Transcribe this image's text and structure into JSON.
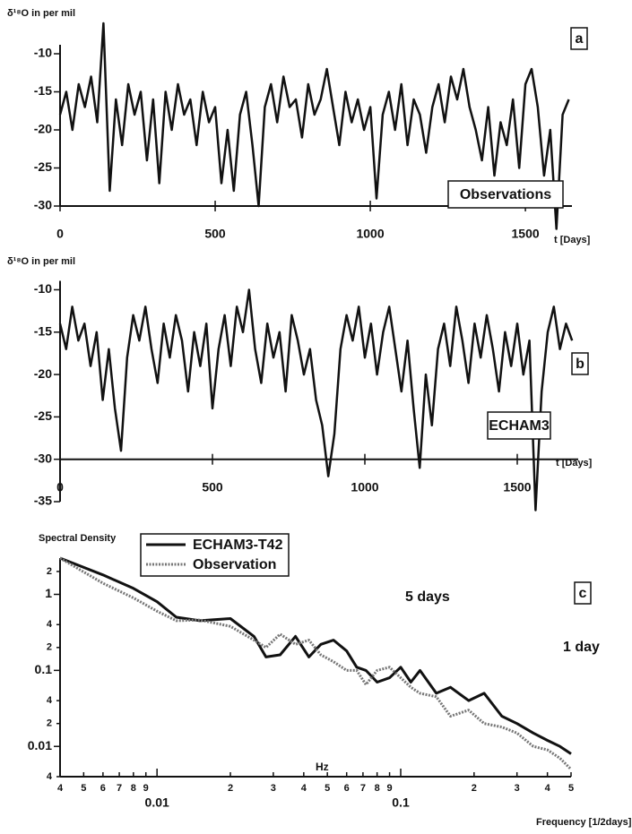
{
  "chart_data": [
    {
      "type": "line",
      "panel_label": "a",
      "ylabel": "δ¹⁸O in per mil",
      "xlabel": "t [Days]",
      "xlim": [
        0,
        1650
      ],
      "xticks": [
        0,
        500,
        1000,
        1500
      ],
      "ylim": [
        -30,
        -8
      ],
      "yticks": [
        -10,
        -15,
        -20,
        -25,
        -30
      ],
      "series": [
        {
          "name": "Observations",
          "color": "#111111",
          "x": [
            0,
            20,
            40,
            60,
            80,
            100,
            120,
            140,
            160,
            180,
            200,
            220,
            240,
            260,
            280,
            300,
            320,
            340,
            360,
            380,
            400,
            420,
            440,
            460,
            480,
            500,
            520,
            540,
            560,
            580,
            600,
            620,
            640,
            660,
            680,
            700,
            720,
            740,
            760,
            780,
            800,
            820,
            840,
            860,
            880,
            900,
            920,
            940,
            960,
            980,
            1000,
            1020,
            1040,
            1060,
            1080,
            1100,
            1120,
            1140,
            1160,
            1180,
            1200,
            1220,
            1240,
            1260,
            1280,
            1300,
            1320,
            1340,
            1360,
            1380,
            1400,
            1420,
            1440,
            1460,
            1480,
            1500,
            1520,
            1540,
            1560,
            1580,
            1600,
            1620,
            1640
          ],
          "values": [
            -18,
            -15,
            -20,
            -14,
            -17,
            -13,
            -19,
            -6,
            -28,
            -16,
            -22,
            -14,
            -18,
            -15,
            -24,
            -16,
            -27,
            -15,
            -20,
            -14,
            -18,
            -16,
            -22,
            -15,
            -19,
            -17,
            -27,
            -20,
            -28,
            -18,
            -15,
            -22,
            -30,
            -17,
            -14,
            -19,
            -13,
            -17,
            -16,
            -21,
            -14,
            -18,
            -16,
            -12,
            -17,
            -22,
            -15,
            -19,
            -16,
            -20,
            -17,
            -29,
            -18,
            -15,
            -20,
            -14,
            -22,
            -16,
            -18,
            -23,
            -17,
            -14,
            -19,
            -13,
            -16,
            -12,
            -17,
            -20,
            -24,
            -17,
            -26,
            -19,
            -22,
            -16,
            -25,
            -14,
            -12,
            -17,
            -26,
            -20,
            -33,
            -18,
            -16
          ]
        }
      ]
    },
    {
      "type": "line",
      "panel_label": "b",
      "ylabel": "δ¹⁸O in per mil",
      "xlabel": "t [Days]",
      "xlim": [
        0,
        1700
      ],
      "xticks": [
        0,
        500,
        1000,
        1500
      ],
      "ylim": [
        -35,
        -9
      ],
      "yticks": [
        -10,
        -15,
        -20,
        -25,
        -30,
        -35
      ],
      "series": [
        {
          "name": "ECHAM3",
          "color": "#111111",
          "x": [
            0,
            20,
            40,
            60,
            80,
            100,
            120,
            140,
            160,
            180,
            200,
            220,
            240,
            260,
            280,
            300,
            320,
            340,
            360,
            380,
            400,
            420,
            440,
            460,
            480,
            500,
            520,
            540,
            560,
            580,
            600,
            620,
            640,
            660,
            680,
            700,
            720,
            740,
            760,
            780,
            800,
            820,
            840,
            860,
            880,
            900,
            920,
            940,
            960,
            980,
            1000,
            1020,
            1040,
            1060,
            1080,
            1100,
            1120,
            1140,
            1160,
            1180,
            1200,
            1220,
            1240,
            1260,
            1280,
            1300,
            1320,
            1340,
            1360,
            1380,
            1400,
            1420,
            1440,
            1460,
            1480,
            1500,
            1520,
            1540,
            1560,
            1580,
            1600,
            1620,
            1640,
            1660,
            1680
          ],
          "values": [
            -14,
            -17,
            -12,
            -16,
            -14,
            -19,
            -15,
            -23,
            -17,
            -24,
            -29,
            -18,
            -13,
            -16,
            -12,
            -17,
            -21,
            -14,
            -18,
            -13,
            -16,
            -22,
            -15,
            -19,
            -14,
            -24,
            -17,
            -13,
            -19,
            -12,
            -15,
            -10,
            -17,
            -21,
            -14,
            -18,
            -15,
            -22,
            -13,
            -16,
            -20,
            -17,
            -23,
            -26,
            -32,
            -27,
            -17,
            -13,
            -16,
            -12,
            -18,
            -14,
            -20,
            -15,
            -12,
            -17,
            -22,
            -16,
            -24,
            -31,
            -20,
            -26,
            -17,
            -14,
            -19,
            -12,
            -16,
            -21,
            -14,
            -18,
            -13,
            -17,
            -22,
            -15,
            -19,
            -14,
            -20,
            -16,
            -36,
            -22,
            -15,
            -12,
            -17,
            -14,
            -16
          ]
        }
      ]
    },
    {
      "type": "line",
      "panel_label": "c",
      "ylabel": "Spectral Density",
      "xlabel": "Frequency [1/2days]",
      "log_x": true,
      "log_y": true,
      "annotations": [
        "5 days",
        "1 day",
        "Hz"
      ],
      "xlim": [
        0.004,
        0.5
      ],
      "xticks": [
        {
          "value": 0.004,
          "label": "4"
        },
        {
          "value": 0.005,
          "label": "5"
        },
        {
          "value": 0.006,
          "label": "6"
        },
        {
          "value": 0.007,
          "label": "7"
        },
        {
          "value": 0.008,
          "label": "8"
        },
        {
          "value": 0.009,
          "label": "9"
        },
        0.01,
        {
          "value": 0.02,
          "label": "2"
        },
        {
          "value": 0.03,
          "label": "3"
        },
        {
          "value": 0.04,
          "label": "4"
        },
        {
          "value": 0.05,
          "label": "5"
        },
        {
          "value": 0.06,
          "label": "6"
        },
        {
          "value": 0.07,
          "label": "7"
        },
        {
          "value": 0.08,
          "label": "8"
        },
        {
          "value": 0.09,
          "label": "9"
        },
        0.1,
        {
          "value": 0.2,
          "label": "2"
        },
        {
          "value": 0.3,
          "label": "3"
        },
        {
          "value": 0.4,
          "label": "4"
        },
        {
          "value": 0.5,
          "label": "5"
        }
      ],
      "ylim": [
        0.004,
        3
      ],
      "yticks": [
        {
          "value": 2,
          "label": "2"
        },
        1,
        {
          "value": 0.4,
          "label": "4"
        },
        {
          "value": 0.2,
          "label": "2"
        },
        0.1,
        {
          "value": 0.04,
          "label": "4"
        },
        {
          "value": 0.02,
          "label": "2"
        },
        0.01,
        {
          "value": 0.004,
          "label": "4"
        }
      ],
      "series": [
        {
          "name": "ECHAM3-T42",
          "color": "#111111",
          "dash": "solid",
          "x": [
            0.004,
            0.006,
            0.008,
            0.01,
            0.012,
            0.015,
            0.02,
            0.025,
            0.028,
            0.032,
            0.037,
            0.042,
            0.047,
            0.053,
            0.06,
            0.066,
            0.072,
            0.08,
            0.09,
            0.1,
            0.11,
            0.12,
            0.14,
            0.16,
            0.19,
            0.22,
            0.26,
            0.3,
            0.35,
            0.4,
            0.45,
            0.5
          ],
          "values": [
            3,
            1.8,
            1.2,
            0.8,
            0.5,
            0.45,
            0.48,
            0.28,
            0.15,
            0.16,
            0.28,
            0.15,
            0.22,
            0.25,
            0.18,
            0.11,
            0.1,
            0.07,
            0.08,
            0.11,
            0.07,
            0.1,
            0.05,
            0.06,
            0.04,
            0.05,
            0.025,
            0.02,
            0.015,
            0.012,
            0.01,
            0.008
          ]
        },
        {
          "name": "Observation",
          "color": "#777777",
          "dash": "dotted",
          "x": [
            0.004,
            0.006,
            0.008,
            0.01,
            0.012,
            0.015,
            0.02,
            0.025,
            0.028,
            0.032,
            0.037,
            0.042,
            0.047,
            0.053,
            0.06,
            0.066,
            0.072,
            0.08,
            0.09,
            0.1,
            0.11,
            0.12,
            0.14,
            0.16,
            0.19,
            0.22,
            0.26,
            0.3,
            0.35,
            0.4,
            0.45,
            0.5
          ],
          "values": [
            3,
            1.4,
            0.9,
            0.6,
            0.45,
            0.46,
            0.38,
            0.25,
            0.2,
            0.3,
            0.22,
            0.25,
            0.16,
            0.13,
            0.1,
            0.1,
            0.065,
            0.1,
            0.11,
            0.08,
            0.06,
            0.05,
            0.045,
            0.025,
            0.03,
            0.02,
            0.018,
            0.015,
            0.01,
            0.009,
            0.007,
            0.005
          ]
        }
      ]
    }
  ]
}
